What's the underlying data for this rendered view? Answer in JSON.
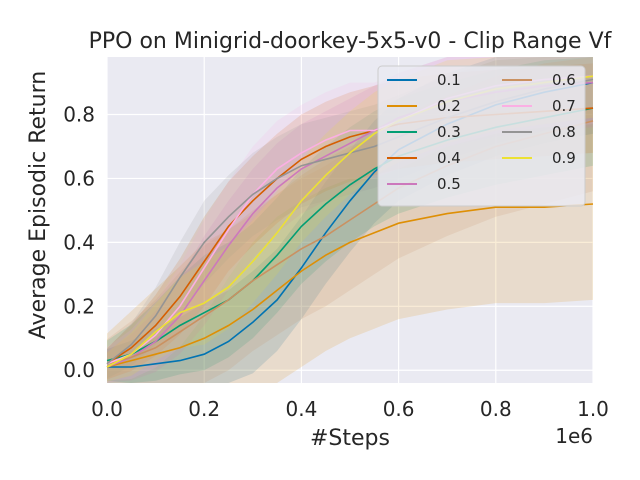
{
  "chart_data": {
    "type": "line",
    "title": "PPO on Minigrid-doorkey-5x5-v0 - Clip Range Vf",
    "xlabel": "#Steps",
    "ylabel": "Average Episodic Return",
    "x_multiplier_label": "1e6",
    "xlim": [
      0.0,
      1.0
    ],
    "ylim": [
      -0.04,
      0.98
    ],
    "xticks": [
      "0.0",
      "0.2",
      "0.4",
      "0.6",
      "0.8",
      "1.0"
    ],
    "yticks": [
      "0.0",
      "0.2",
      "0.4",
      "0.6",
      "0.8"
    ],
    "xtick_values": [
      0.0,
      0.2,
      0.4,
      0.6,
      0.8,
      1.0
    ],
    "ytick_values": [
      0.0,
      0.2,
      0.4,
      0.6,
      0.8
    ],
    "grid": true,
    "legend_position": "top-right",
    "x": [
      0.0,
      0.05,
      0.1,
      0.15,
      0.2,
      0.25,
      0.3,
      0.35,
      0.4,
      0.45,
      0.5,
      0.55,
      0.6,
      0.7,
      0.8,
      0.9,
      1.0
    ],
    "series": [
      {
        "name": "0.1",
        "color": "#0173b2",
        "values": [
          0.01,
          0.01,
          0.02,
          0.03,
          0.05,
          0.09,
          0.15,
          0.22,
          0.32,
          0.43,
          0.53,
          0.62,
          0.69,
          0.77,
          0.83,
          0.87,
          0.9
        ],
        "band": 0.16
      },
      {
        "name": "0.2",
        "color": "#de8f05",
        "values": [
          0.01,
          0.03,
          0.05,
          0.07,
          0.1,
          0.14,
          0.19,
          0.25,
          0.31,
          0.36,
          0.4,
          0.43,
          0.46,
          0.49,
          0.51,
          0.51,
          0.52
        ],
        "band": 0.3
      },
      {
        "name": "0.3",
        "color": "#029e73",
        "values": [
          0.03,
          0.05,
          0.09,
          0.14,
          0.18,
          0.22,
          0.28,
          0.36,
          0.45,
          0.52,
          0.58,
          0.63,
          0.67,
          0.72,
          0.76,
          0.79,
          0.82
        ],
        "band": 0.18
      },
      {
        "name": "0.4",
        "color": "#d55e00",
        "values": [
          0.02,
          0.07,
          0.14,
          0.23,
          0.34,
          0.45,
          0.53,
          0.6,
          0.66,
          0.7,
          0.73,
          0.75,
          0.77,
          0.79,
          0.8,
          0.81,
          0.82
        ],
        "band": 0.14
      },
      {
        "name": "0.5",
        "color": "#cc78bc",
        "values": [
          0.01,
          0.04,
          0.09,
          0.17,
          0.28,
          0.39,
          0.49,
          0.57,
          0.63,
          0.67,
          0.71,
          0.75,
          0.79,
          0.84,
          0.87,
          0.89,
          0.9
        ],
        "band": 0.14
      },
      {
        "name": "0.6",
        "color": "#ca9161",
        "values": [
          0.02,
          0.04,
          0.07,
          0.12,
          0.17,
          0.22,
          0.28,
          0.33,
          0.38,
          0.42,
          0.47,
          0.52,
          0.57,
          0.64,
          0.7,
          0.74,
          0.78
        ],
        "band": 0.22
      },
      {
        "name": "0.7",
        "color": "#fbafe4",
        "values": [
          0.02,
          0.05,
          0.11,
          0.2,
          0.32,
          0.44,
          0.55,
          0.63,
          0.68,
          0.72,
          0.75,
          0.75,
          0.78,
          0.85,
          0.89,
          0.91,
          0.92
        ],
        "band": 0.15
      },
      {
        "name": "0.8",
        "color": "#949494",
        "values": [
          0.02,
          0.08,
          0.17,
          0.29,
          0.4,
          0.48,
          0.55,
          0.6,
          0.64,
          0.66,
          0.68,
          0.7,
          0.73,
          0.79,
          0.84,
          0.88,
          0.91
        ],
        "band": 0.13
      },
      {
        "name": "0.9",
        "color": "#ece133",
        "values": [
          0.01,
          0.05,
          0.12,
          0.18,
          0.21,
          0.26,
          0.34,
          0.43,
          0.53,
          0.61,
          0.68,
          0.74,
          0.78,
          0.84,
          0.88,
          0.9,
          0.92
        ],
        "band": 0.13
      }
    ]
  }
}
